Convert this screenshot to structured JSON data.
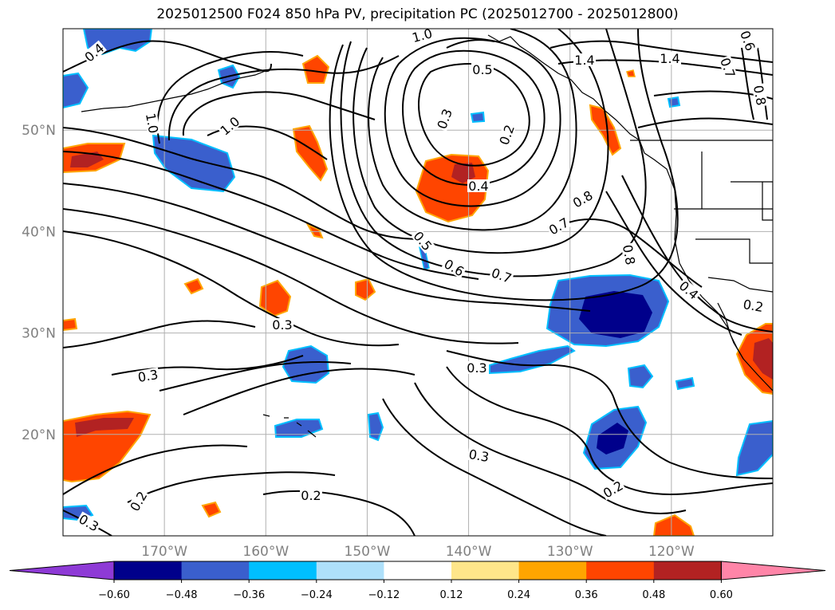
{
  "title": "2025012500 F024 850 hPa PV, precipitation PC (2025012700 - 2025012800)",
  "map": {
    "lat_ticks": [
      "50°N",
      "40°N",
      "30°N",
      "20°N"
    ],
    "lon_ticks": [
      "170°W",
      "160°W",
      "150°W",
      "140°W",
      "130°W",
      "120°W"
    ],
    "lat_range": [
      10,
      60
    ],
    "lon_range": [
      -180,
      -110
    ],
    "contour_labels": [
      "1.0",
      "1.0",
      "1.4",
      "1.4",
      "0.5",
      "0.3",
      "0.2",
      "0.4",
      "0.8",
      "0.7",
      "0.5",
      "0.6",
      "0.7",
      "0.8",
      "0.4",
      "0.2",
      "0.3",
      "0.3",
      "0.3",
      "0.3",
      "0.2",
      "0.2",
      "0.2",
      "0.3",
      "0.4",
      "0.6",
      "0.8",
      "0.7",
      "1.0"
    ]
  },
  "colorbar": {
    "labels": [
      "−0.60",
      "−0.48",
      "−0.36",
      "−0.24",
      "−0.12",
      "0.12",
      "0.24",
      "0.36",
      "0.48",
      "0.60"
    ],
    "colors": [
      "#8e3ad6",
      "#00008b",
      "#3a5fcd",
      "#00bfff",
      "#aee0fa",
      "#ffffff",
      "#ffe68a",
      "#ffa500",
      "#ff4500",
      "#b22222",
      "#ff85a8"
    ]
  },
  "colors": {
    "grid": "#b0b0b0",
    "contour": "#000000",
    "neg_light": "#00bfff",
    "neg_mid": "#3a5fcd",
    "neg_dark": "#00008b",
    "pos_light": "#ffa500",
    "pos_mid": "#ff4500",
    "pos_dark": "#b22222"
  }
}
